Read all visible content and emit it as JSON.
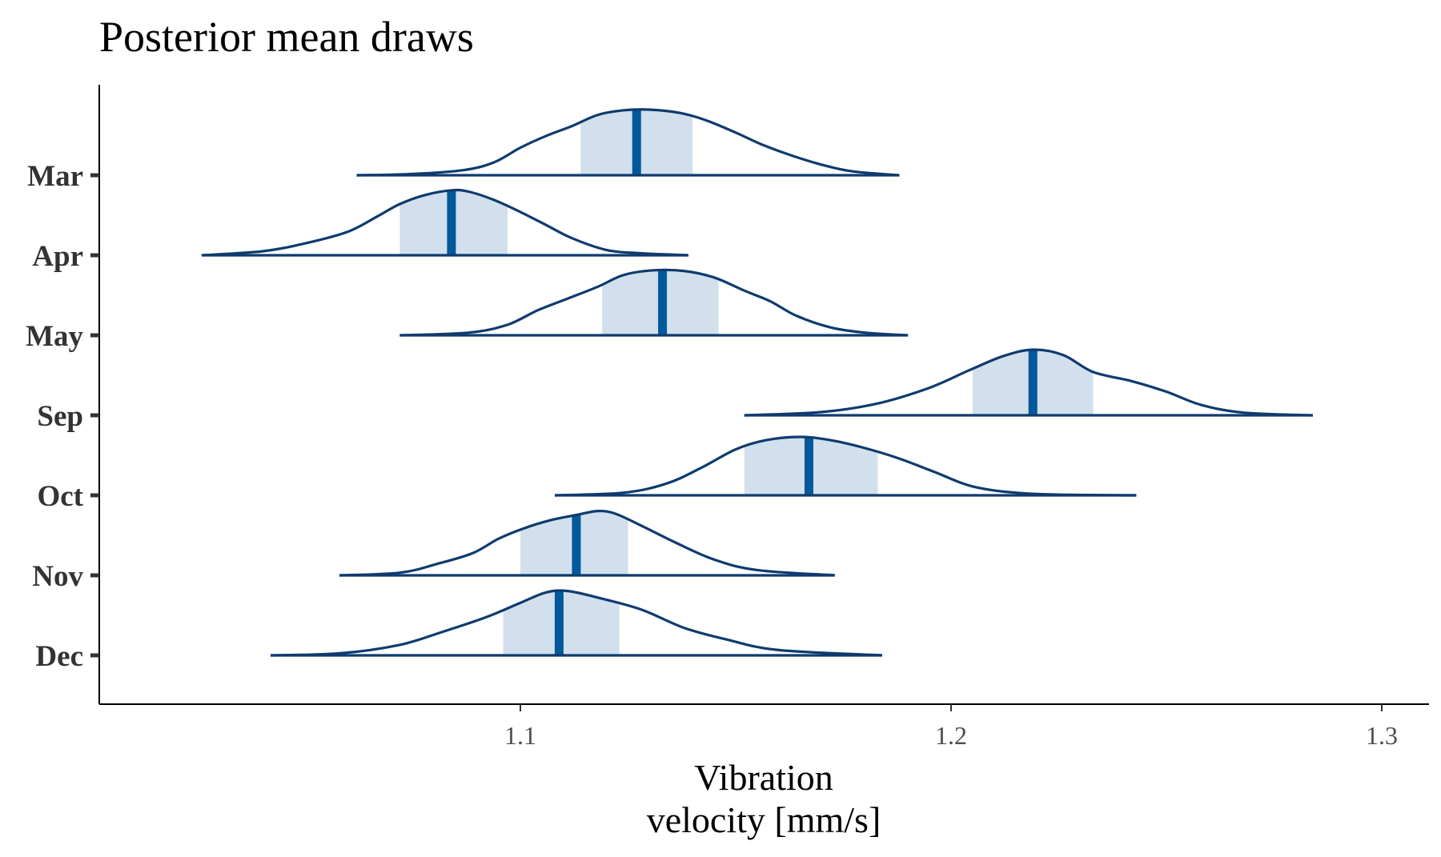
{
  "chart_data": {
    "type": "ridgeline",
    "title": "Posterior mean draws",
    "xlabel": [
      "Vibration",
      "velocity [mm/s]"
    ],
    "ylabel": "",
    "xlim": [
      1.01,
      1.31
    ],
    "xticks": [
      1.1,
      1.2,
      1.3
    ],
    "xtick_labels": [
      "1.1",
      "1.2",
      "1.3"
    ],
    "grid": false,
    "legend": "none",
    "colors": {
      "outline": "#0e3b6e",
      "interval_fill": "#d1e0ec",
      "median": "#00599a",
      "axis": "#000000",
      "tick": "#333333"
    },
    "series": [
      {
        "name": "Mar",
        "min": 1.062,
        "max": 1.188,
        "ci": [
          1.114,
          1.14
        ],
        "median": 1.127,
        "density": [
          [
            1.062,
            0.0
          ],
          [
            1.075,
            0.02
          ],
          [
            1.087,
            0.08
          ],
          [
            1.094,
            0.2
          ],
          [
            1.1,
            0.42
          ],
          [
            1.106,
            0.6
          ],
          [
            1.112,
            0.75
          ],
          [
            1.118,
            0.92
          ],
          [
            1.124,
            0.99
          ],
          [
            1.13,
            1.0
          ],
          [
            1.137,
            0.95
          ],
          [
            1.143,
            0.84
          ],
          [
            1.15,
            0.65
          ],
          [
            1.156,
            0.47
          ],
          [
            1.163,
            0.3
          ],
          [
            1.17,
            0.16
          ],
          [
            1.177,
            0.06
          ],
          [
            1.188,
            0.0
          ]
        ]
      },
      {
        "name": "Apr",
        "min": 1.026,
        "max": 1.139,
        "ci": [
          1.072,
          1.097
        ],
        "median": 1.084,
        "density": [
          [
            1.026,
            0.0
          ],
          [
            1.04,
            0.06
          ],
          [
            1.05,
            0.18
          ],
          [
            1.06,
            0.36
          ],
          [
            1.067,
            0.6
          ],
          [
            1.072,
            0.78
          ],
          [
            1.078,
            0.92
          ],
          [
            1.084,
            0.99
          ],
          [
            1.088,
            0.97
          ],
          [
            1.094,
            0.84
          ],
          [
            1.1,
            0.66
          ],
          [
            1.106,
            0.46
          ],
          [
            1.112,
            0.26
          ],
          [
            1.12,
            0.08
          ],
          [
            1.128,
            0.03
          ],
          [
            1.139,
            0.0
          ]
        ]
      },
      {
        "name": "May",
        "min": 1.072,
        "max": 1.19,
        "ci": [
          1.119,
          1.146
        ],
        "median": 1.133,
        "density": [
          [
            1.072,
            0.0
          ],
          [
            1.088,
            0.04
          ],
          [
            1.097,
            0.16
          ],
          [
            1.104,
            0.38
          ],
          [
            1.111,
            0.56
          ],
          [
            1.118,
            0.74
          ],
          [
            1.124,
            0.92
          ],
          [
            1.131,
            0.99
          ],
          [
            1.138,
            0.98
          ],
          [
            1.145,
            0.88
          ],
          [
            1.152,
            0.68
          ],
          [
            1.158,
            0.52
          ],
          [
            1.164,
            0.3
          ],
          [
            1.172,
            0.12
          ],
          [
            1.18,
            0.04
          ],
          [
            1.19,
            0.0
          ]
        ]
      },
      {
        "name": "Sep",
        "min": 1.152,
        "max": 1.284,
        "ci": [
          1.205,
          1.233
        ],
        "median": 1.219,
        "density": [
          [
            1.152,
            0.0
          ],
          [
            1.17,
            0.05
          ],
          [
            1.183,
            0.18
          ],
          [
            1.195,
            0.42
          ],
          [
            1.204,
            0.68
          ],
          [
            1.212,
            0.9
          ],
          [
            1.219,
            1.0
          ],
          [
            1.226,
            0.92
          ],
          [
            1.233,
            0.66
          ],
          [
            1.242,
            0.52
          ],
          [
            1.25,
            0.36
          ],
          [
            1.258,
            0.16
          ],
          [
            1.268,
            0.04
          ],
          [
            1.284,
            0.0
          ]
        ]
      },
      {
        "name": "Oct",
        "min": 1.108,
        "max": 1.243,
        "ci": [
          1.152,
          1.183
        ],
        "median": 1.167,
        "density": [
          [
            1.108,
            0.0
          ],
          [
            1.124,
            0.04
          ],
          [
            1.134,
            0.18
          ],
          [
            1.142,
            0.42
          ],
          [
            1.15,
            0.7
          ],
          [
            1.157,
            0.84
          ],
          [
            1.165,
            0.89
          ],
          [
            1.172,
            0.84
          ],
          [
            1.18,
            0.72
          ],
          [
            1.188,
            0.56
          ],
          [
            1.196,
            0.36
          ],
          [
            1.206,
            0.12
          ],
          [
            1.22,
            0.02
          ],
          [
            1.243,
            0.0
          ]
        ]
      },
      {
        "name": "Nov",
        "min": 1.058,
        "max": 1.173,
        "ci": [
          1.1,
          1.125
        ],
        "median": 1.113,
        "density": [
          [
            1.058,
            0.0
          ],
          [
            1.072,
            0.04
          ],
          [
            1.081,
            0.18
          ],
          [
            1.089,
            0.34
          ],
          [
            1.095,
            0.56
          ],
          [
            1.101,
            0.72
          ],
          [
            1.107,
            0.84
          ],
          [
            1.113,
            0.92
          ],
          [
            1.118,
            0.98
          ],
          [
            1.122,
            0.94
          ],
          [
            1.128,
            0.76
          ],
          [
            1.136,
            0.5
          ],
          [
            1.145,
            0.24
          ],
          [
            1.155,
            0.08
          ],
          [
            1.173,
            0.0
          ]
        ]
      },
      {
        "name": "Dec",
        "min": 1.042,
        "max": 1.184,
        "ci": [
          1.096,
          1.123
        ],
        "median": 1.109,
        "density": [
          [
            1.042,
            0.0
          ],
          [
            1.058,
            0.03
          ],
          [
            1.072,
            0.16
          ],
          [
            1.082,
            0.36
          ],
          [
            1.092,
            0.58
          ],
          [
            1.1,
            0.8
          ],
          [
            1.106,
            0.96
          ],
          [
            1.111,
            0.98
          ],
          [
            1.118,
            0.88
          ],
          [
            1.128,
            0.7
          ],
          [
            1.138,
            0.42
          ],
          [
            1.148,
            0.24
          ],
          [
            1.16,
            0.08
          ],
          [
            1.184,
            0.0
          ]
        ]
      }
    ]
  }
}
